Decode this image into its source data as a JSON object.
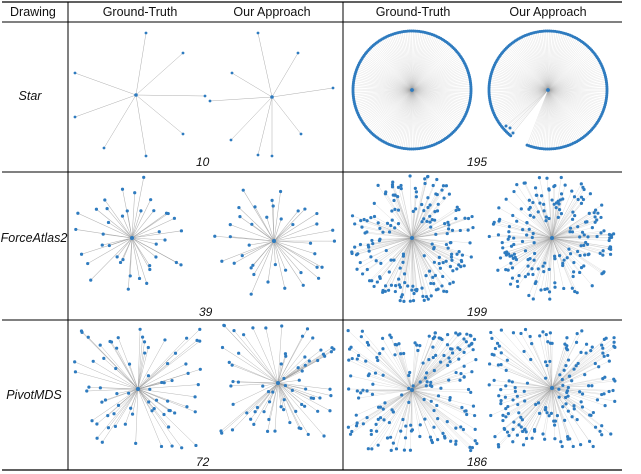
{
  "headers": {
    "drawing": "Drawing",
    "gt_1": "Ground-Truth",
    "ours_1": "Our Approach",
    "gt_2": "Ground-Truth",
    "ours_2": "Our Approach"
  },
  "rows": [
    {
      "label": "Star",
      "small_n": "10",
      "large_n": "195"
    },
    {
      "label": "ForceAtlas2",
      "small_n": "39",
      "large_n": "199"
    },
    {
      "label": "PivotMDS",
      "small_n": "72",
      "large_n": "186"
    }
  ],
  "colors": {
    "node": "#2e7bbf",
    "edge": "#9a9a9a",
    "rule": "#000000"
  }
}
